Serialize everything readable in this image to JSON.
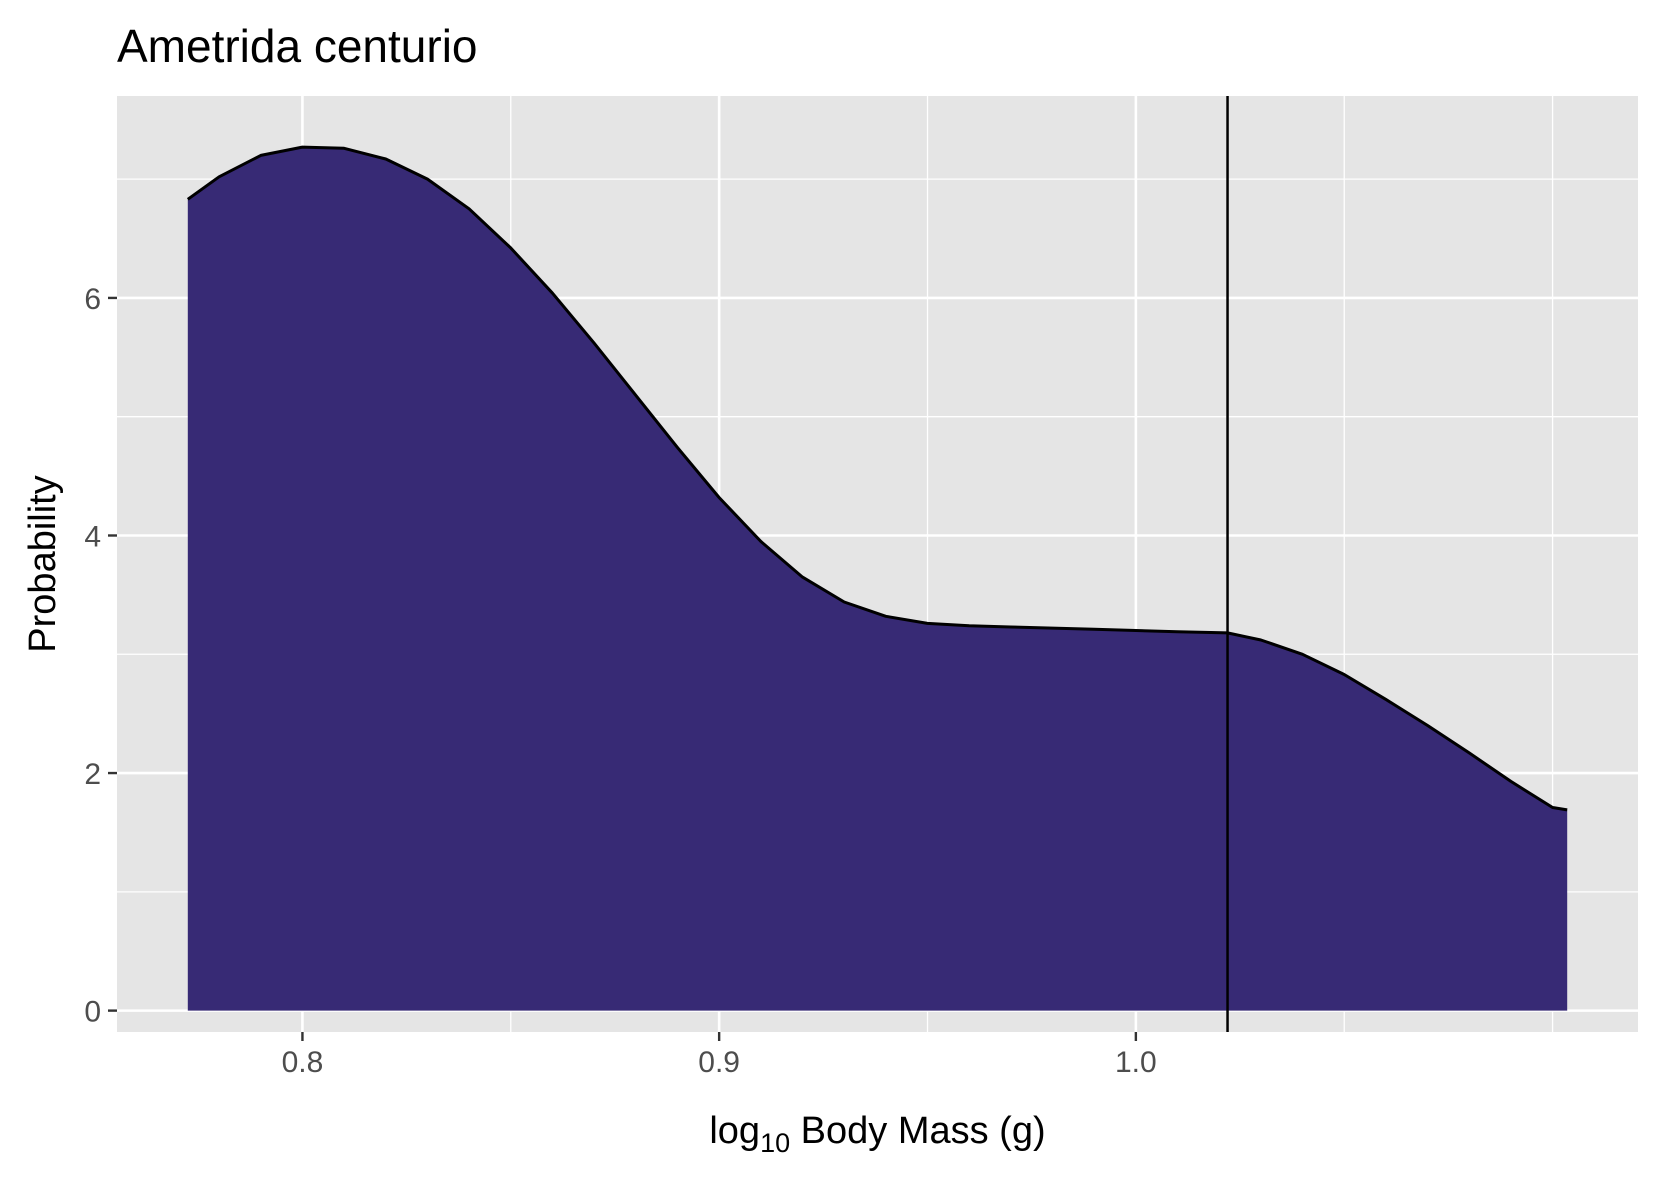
{
  "chart_data": {
    "type": "area",
    "title": "Ametrida centurio",
    "xlabel_prefix": "log",
    "xlabel_subscript": "10",
    "xlabel_suffix": " Body Mass (g)",
    "ylabel": "Probability",
    "xlim": [
      0.7555,
      1.1205
    ],
    "ylim": [
      -0.18,
      7.7
    ],
    "x_ticks": [
      {
        "value": 0.8,
        "label": "0.8"
      },
      {
        "value": 0.9,
        "label": "0.9"
      },
      {
        "value": 1.0,
        "label": "1.0"
      }
    ],
    "x_minor": [
      0.85,
      0.95,
      1.05,
      1.1
    ],
    "y_ticks": [
      {
        "value": 0,
        "label": "0"
      },
      {
        "value": 2,
        "label": "2"
      },
      {
        "value": 4,
        "label": "4"
      },
      {
        "value": 6,
        "label": "6"
      }
    ],
    "y_minor": [
      1,
      3,
      5,
      7
    ],
    "grid": true,
    "series": [
      {
        "fill": "#372A75",
        "line_color": "#000000",
        "x": [
          0.7725,
          0.78,
          0.79,
          0.8,
          0.81,
          0.82,
          0.83,
          0.84,
          0.85,
          0.86,
          0.87,
          0.88,
          0.89,
          0.9,
          0.91,
          0.92,
          0.93,
          0.94,
          0.95,
          0.96,
          0.97,
          0.98,
          0.99,
          1.0,
          1.01,
          1.022,
          1.03,
          1.04,
          1.05,
          1.06,
          1.07,
          1.08,
          1.09,
          1.1,
          1.1035
        ],
        "y": [
          6.83,
          7.02,
          7.2,
          7.27,
          7.26,
          7.17,
          7.0,
          6.75,
          6.42,
          6.04,
          5.62,
          5.18,
          4.74,
          4.32,
          3.95,
          3.65,
          3.44,
          3.32,
          3.26,
          3.24,
          3.23,
          3.22,
          3.21,
          3.2,
          3.19,
          3.18,
          3.12,
          3.0,
          2.83,
          2.62,
          2.4,
          2.17,
          1.93,
          1.71,
          1.69
        ]
      }
    ],
    "vline_x": 1.022
  }
}
